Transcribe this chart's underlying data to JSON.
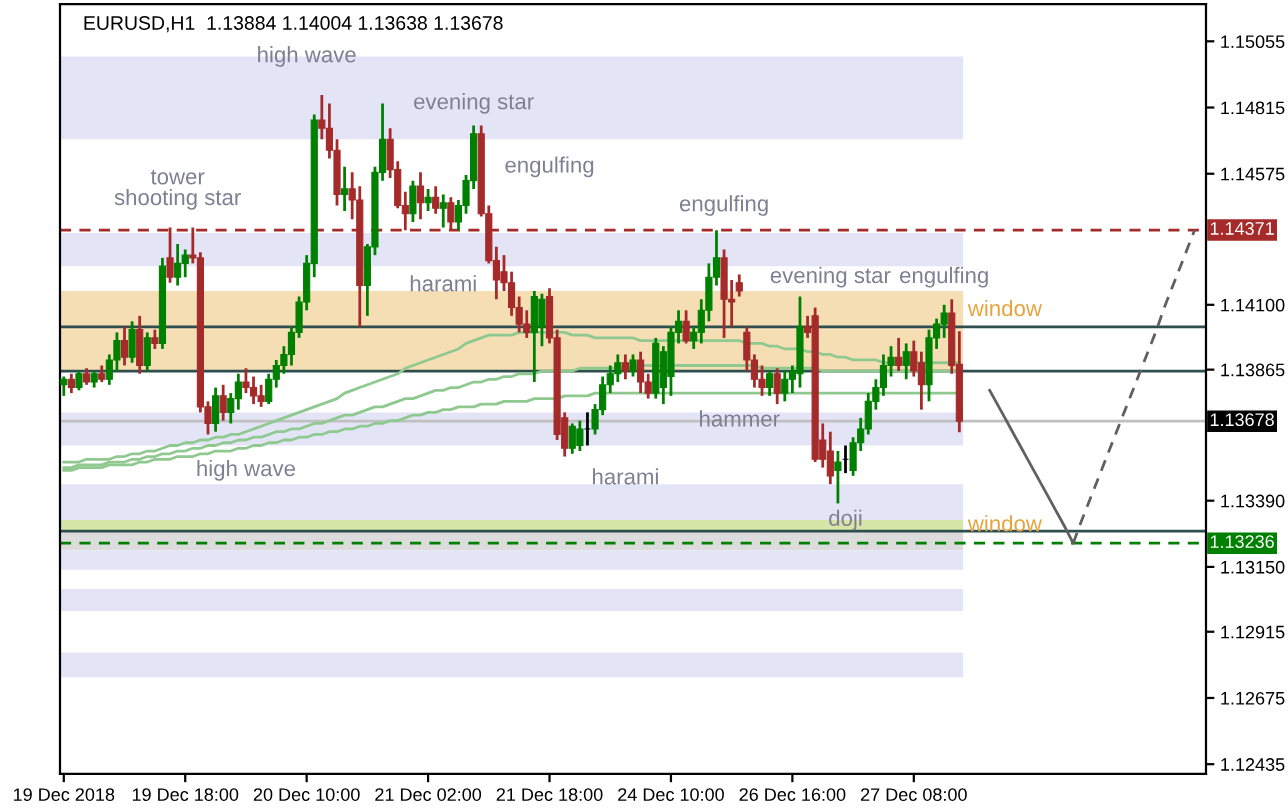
{
  "chart_data": {
    "type": "candlestick",
    "title": "EURUSD,H1  1.13884 1.14004 1.13638 1.13678",
    "categories": [
      "19 Dec 2018",
      null,
      null,
      null,
      null,
      null,
      null,
      null,
      null,
      null,
      null,
      null,
      null,
      null,
      null,
      null,
      "19 Dec 18:00",
      null,
      null,
      null,
      null,
      null,
      null,
      null,
      null,
      null,
      null,
      null,
      null,
      null,
      null,
      null,
      "20 Dec 10:00",
      null,
      null,
      null,
      null,
      null,
      null,
      null,
      null,
      null,
      null,
      null,
      null,
      null,
      null,
      null,
      "21 Dec 02:00",
      null,
      null,
      null,
      null,
      null,
      null,
      null,
      null,
      null,
      null,
      null,
      null,
      null,
      null,
      null,
      "21 Dec 18:00",
      null,
      null,
      null,
      null,
      null,
      null,
      null,
      null,
      null,
      null,
      null,
      null,
      null,
      null,
      null,
      "24 Dec 10:00",
      null,
      null,
      null,
      null,
      null,
      null,
      null,
      null,
      null,
      null,
      null,
      null,
      null,
      null,
      null,
      "26 Dec 16:00",
      null,
      null,
      null,
      null,
      null,
      null,
      null,
      null,
      null,
      null,
      null,
      null,
      null,
      null,
      null,
      "27 Dec 08:00",
      null,
      null,
      null,
      null,
      null,
      null,
      null,
      null,
      null,
      null,
      null,
      null,
      null,
      null,
      null,
      null,
      null,
      null,
      null,
      null,
      null,
      null,
      null,
      null,
      null,
      null,
      null,
      null,
      null,
      null,
      null,
      null,
      null,
      null,
      null,
      null,
      null,
      null
    ],
    "colors": [
      "#008000",
      "#a52a2a",
      "#008000",
      "#a52a2a",
      "#008000",
      "#a52a2a",
      "#008000",
      "#008000",
      "#a52a2a",
      "#008000",
      "#a52a2a",
      "#008000",
      "#a52a2a",
      "#008000",
      "#a52a2a",
      "#008000",
      "#008000",
      "#a52a2a",
      "#a52a2a",
      "#a52a2a",
      "#008000",
      "#a52a2a",
      "#008000",
      "#008000",
      "#a52a2a",
      "#a52a2a",
      "#a52a2a",
      "#008000",
      "#008000",
      "#008000",
      "#008000",
      "#008000",
      "#008000",
      "#008000",
      "#a52a2a",
      "#a52a2a",
      "#a52a2a",
      "#008000",
      "#a52a2a",
      "#a52a2a",
      "#008000",
      "#008000",
      "#008000",
      "#a52a2a",
      "#a52a2a",
      "#a52a2a",
      "#008000",
      "#a52a2a",
      "#008000",
      "#a52a2a",
      "#008000",
      "#a52a2a",
      "#008000",
      "#008000",
      "#008000",
      "#a52a2a",
      "#a52a2a",
      "#a52a2a",
      "#a52a2a",
      "#a52a2a",
      "#a52a2a",
      "#a52a2a",
      "#008000",
      "#008000",
      "#a52a2a",
      "#a52a2a",
      "#a52a2a",
      "#008000",
      "#008000",
      "#000000",
      "#008000",
      "#008000",
      "#008000",
      "#008000",
      "#a52a2a",
      "#008000",
      "#a52a2a",
      "#a52a2a",
      "#008000",
      "#008000",
      "#008000",
      "#008000",
      "#a52a2a",
      "#008000",
      "#008000",
      "#008000",
      "#008000",
      "#a52a2a",
      "#a52a2a",
      "#a52a2a",
      "#a52a2a",
      "#a52a2a",
      "#a52a2a",
      "#008000",
      "#a52a2a",
      "#008000",
      "#008000",
      "#008000",
      "#a52a2a",
      "#a52a2a",
      "#a52a2a",
      "#a52a2a",
      "#008000",
      "#000000",
      "#008000",
      "#008000",
      "#008000",
      "#008000",
      "#008000",
      "#008000",
      "#a52a2a",
      "#008000",
      "#a52a2a",
      "#a52a2a",
      "#008000",
      "#008000",
      "#008000",
      "#a52a2a",
      "#a52a2a",
      null,
      null,
      null,
      null,
      null,
      null,
      null,
      null,
      null,
      null,
      null,
      null,
      null,
      null,
      null,
      null,
      null,
      null,
      null,
      null,
      null,
      null,
      null,
      null,
      null,
      null,
      null,
      null,
      null,
      null,
      null,
      null
    ],
    "ohlc": [
      [
        1.1381,
        1.1384,
        1.1377,
        1.1383
      ],
      [
        1.1383,
        1.1385,
        1.1378,
        1.138
      ],
      [
        1.138,
        1.1386,
        1.1379,
        1.1385
      ],
      [
        1.1385,
        1.1387,
        1.1381,
        1.1382
      ],
      [
        1.1382,
        1.1386,
        1.138,
        1.1385
      ],
      [
        1.1385,
        1.1388,
        1.1382,
        1.1383
      ],
      [
        1.1383,
        1.1392,
        1.1381,
        1.139
      ],
      [
        1.139,
        1.14,
        1.1386,
        1.1397
      ],
      [
        1.1397,
        1.1402,
        1.1388,
        1.1391
      ],
      [
        1.1391,
        1.1404,
        1.1389,
        1.1401
      ],
      [
        1.1401,
        1.1406,
        1.1385,
        1.1388
      ],
      [
        1.1388,
        1.14,
        1.1386,
        1.1398
      ],
      [
        1.1398,
        1.1401,
        1.1394,
        1.1396
      ],
      [
        1.1396,
        1.1427,
        1.1394,
        1.1424
      ],
      [
        1.1427,
        1.1438,
        1.1418,
        1.142
      ],
      [
        1.142,
        1.1432,
        1.1417,
        1.1425
      ],
      [
        1.1425,
        1.143,
        1.142,
        1.1428
      ],
      [
        1.1428,
        1.1438,
        1.1425,
        1.1427
      ],
      [
        1.1427,
        1.1429,
        1.1371,
        1.1373
      ],
      [
        1.1373,
        1.1375,
        1.1363,
        1.1367
      ],
      [
        1.1367,
        1.138,
        1.1364,
        1.1377
      ],
      [
        1.1377,
        1.1381,
        1.1368,
        1.1371
      ],
      [
        1.1371,
        1.1378,
        1.1367,
        1.1376
      ],
      [
        1.1376,
        1.1385,
        1.1372,
        1.1382
      ],
      [
        1.1382,
        1.1387,
        1.1378,
        1.138
      ],
      [
        1.138,
        1.1384,
        1.1374,
        1.1377
      ],
      [
        1.1377,
        1.1381,
        1.1373,
        1.1375
      ],
      [
        1.1375,
        1.1385,
        1.1374,
        1.1383
      ],
      [
        1.1383,
        1.139,
        1.138,
        1.1388
      ],
      [
        1.1388,
        1.1395,
        1.1385,
        1.1392
      ],
      [
        1.1392,
        1.1402,
        1.1388,
        1.14
      ],
      [
        1.14,
        1.1413,
        1.1398,
        1.1411
      ],
      [
        1.1411,
        1.1428,
        1.1408,
        1.1425
      ],
      [
        1.1425,
        1.1479,
        1.142,
        1.1477
      ],
      [
        1.1477,
        1.1486,
        1.147,
        1.1474
      ],
      [
        1.1474,
        1.1483,
        1.1463,
        1.1466
      ],
      [
        1.1466,
        1.147,
        1.1446,
        1.145
      ],
      [
        1.145,
        1.146,
        1.1444,
        1.1452
      ],
      [
        1.1452,
        1.1458,
        1.1441,
        1.1448
      ],
      [
        1.1448,
        1.1453,
        1.1402,
        1.1417
      ],
      [
        1.1417,
        1.1432,
        1.1406,
        1.1431
      ],
      [
        1.1431,
        1.146,
        1.1428,
        1.1458
      ],
      [
        1.1458,
        1.1483,
        1.1455,
        1.147
      ],
      [
        1.147,
        1.1474,
        1.1456,
        1.1459
      ],
      [
        1.1459,
        1.1462,
        1.1445,
        1.1446
      ],
      [
        1.1446,
        1.1451,
        1.1437,
        1.1443
      ],
      [
        1.1443,
        1.1455,
        1.144,
        1.1453
      ],
      [
        1.1453,
        1.1458,
        1.1441,
        1.1447
      ],
      [
        1.1447,
        1.1452,
        1.1444,
        1.1449
      ],
      [
        1.1449,
        1.1453,
        1.1443,
        1.1445
      ],
      [
        1.1445,
        1.145,
        1.1438,
        1.1447
      ],
      [
        1.1447,
        1.1449,
        1.1437,
        1.144
      ],
      [
        1.144,
        1.1448,
        1.1437,
        1.1446
      ],
      [
        1.1446,
        1.1457,
        1.1443,
        1.1455
      ],
      [
        1.1455,
        1.1475,
        1.1452,
        1.1472
      ],
      [
        1.1472,
        1.1475,
        1.1442,
        1.1443
      ],
      [
        1.1443,
        1.1446,
        1.1425,
        1.1426
      ],
      [
        1.1426,
        1.1431,
        1.1412,
        1.1419
      ],
      [
        1.1422,
        1.1428,
        1.1415,
        1.1418
      ],
      [
        1.1418,
        1.1422,
        1.1406,
        1.1409
      ],
      [
        1.1409,
        1.1413,
        1.14,
        1.1403
      ],
      [
        1.1403,
        1.1408,
        1.1398,
        1.14
      ],
      [
        1.14,
        1.1415,
        1.1382,
        1.1413
      ],
      [
        1.1402,
        1.1414,
        1.1395,
        1.1412
      ],
      [
        1.1413,
        1.1416,
        1.1396,
        1.1398
      ],
      [
        1.1398,
        1.1401,
        1.1361,
        1.1363
      ],
      [
        1.1369,
        1.1371,
        1.1355,
        1.1358
      ],
      [
        1.1358,
        1.1367,
        1.1356,
        1.1366
      ],
      [
        1.1359,
        1.1368,
        1.1357,
        1.1365
      ],
      [
        1.1365,
        1.1371,
        1.1359,
        1.1365
      ],
      [
        1.1365,
        1.1374,
        1.1363,
        1.1372
      ],
      [
        1.1372,
        1.1384,
        1.137,
        1.1381
      ],
      [
        1.1381,
        1.1388,
        1.1378,
        1.1385
      ],
      [
        1.1385,
        1.1392,
        1.1382,
        1.1389
      ],
      [
        1.1389,
        1.1392,
        1.1383,
        1.1386
      ],
      [
        1.1386,
        1.1392,
        1.1384,
        1.139
      ],
      [
        1.139,
        1.1393,
        1.1378,
        1.1382
      ],
      [
        1.1382,
        1.1385,
        1.1376,
        1.1378
      ],
      [
        1.1378,
        1.1398,
        1.1376,
        1.1396
      ],
      [
        1.138,
        1.1395,
        1.1374,
        1.1393
      ],
      [
        1.1384,
        1.1402,
        1.1377,
        1.14
      ],
      [
        1.14,
        1.1408,
        1.1396,
        1.1404
      ],
      [
        1.1404,
        1.1408,
        1.1396,
        1.1397
      ],
      [
        1.1397,
        1.1402,
        1.1394,
        1.14
      ],
      [
        1.14,
        1.1412,
        1.1396,
        1.1408
      ],
      [
        1.1408,
        1.1425,
        1.1404,
        1.142
      ],
      [
        1.142,
        1.1437,
        1.1417,
        1.1427
      ],
      [
        1.1427,
        1.143,
        1.1398,
        1.1412
      ],
      [
        1.1412,
        1.1419,
        1.1402,
        1.1411
      ],
      [
        1.1418,
        1.1421,
        1.1413,
        1.1415
      ],
      [
        1.14,
        1.1402,
        1.1386,
        1.139
      ],
      [
        1.139,
        1.1392,
        1.138,
        1.1383
      ],
      [
        1.1383,
        1.1388,
        1.1377,
        1.138
      ],
      [
        1.138,
        1.1386,
        1.1377,
        1.1385
      ],
      [
        1.1385,
        1.1387,
        1.1374,
        1.1378
      ],
      [
        1.1378,
        1.1386,
        1.1375,
        1.1383
      ],
      [
        1.1383,
        1.1388,
        1.1378,
        1.1386
      ],
      [
        1.1385,
        1.1413,
        1.138,
        1.1402
      ],
      [
        1.1402,
        1.1406,
        1.1398,
        1.14
      ],
      [
        1.1406,
        1.1409,
        1.1353,
        1.1354
      ],
      [
        1.1361,
        1.1367,
        1.1351,
        1.1354
      ],
      [
        1.1357,
        1.1364,
        1.1345,
        1.1348
      ],
      [
        1.135,
        1.1357,
        1.1338,
        1.1353
      ],
      [
        1.1354,
        1.1359,
        1.1349,
        1.1354
      ],
      [
        1.135,
        1.1362,
        1.1348,
        1.136
      ],
      [
        1.136,
        1.1369,
        1.1357,
        1.1365
      ],
      [
        1.1365,
        1.1378,
        1.1363,
        1.1375
      ],
      [
        1.1375,
        1.1383,
        1.1372,
        1.138
      ],
      [
        1.138,
        1.1392,
        1.1377,
        1.1388
      ],
      [
        1.1388,
        1.1395,
        1.1384,
        1.1391
      ],
      [
        1.1391,
        1.1398,
        1.1386,
        1.1388
      ],
      [
        1.1388,
        1.1396,
        1.1383,
        1.1393
      ],
      [
        1.1393,
        1.1397,
        1.1384,
        1.1386
      ],
      [
        1.1389,
        1.1393,
        1.1372,
        1.1381
      ],
      [
        1.1381,
        1.1401,
        1.1375,
        1.1398
      ],
      [
        1.1398,
        1.1405,
        1.1394,
        1.1403
      ],
      [
        1.1403,
        1.141,
        1.1398,
        1.1407
      ],
      [
        1.1407,
        1.1412,
        1.1385,
        1.1388
      ],
      [
        1.13884,
        1.14004,
        1.13638,
        1.13678
      ],
      null,
      null,
      null,
      null,
      null,
      null,
      null,
      null,
      null,
      null,
      null,
      null,
      null,
      null,
      null,
      null,
      null,
      null,
      null,
      null,
      null,
      null,
      null,
      null,
      null,
      null,
      null,
      null,
      null,
      null,
      null,
      null
    ],
    "series": [
      {
        "type": "line",
        "color": "#8fc98f",
        "values": [
          1.1353,
          1.1353,
          1.1353,
          1.1354,
          1.1354,
          1.1354,
          1.1354,
          1.1355,
          1.1355,
          1.1356,
          1.1356,
          1.1357,
          1.1357,
          1.1358,
          1.1359,
          1.1359,
          1.136,
          1.136,
          1.1361,
          1.1361,
          1.1362,
          1.1362,
          1.1363,
          1.1363,
          1.1364,
          1.1365,
          1.1366,
          1.1367,
          1.1368,
          1.1369,
          1.137,
          1.1371,
          1.1372,
          1.1373,
          1.1374,
          1.1375,
          1.1376,
          1.1378,
          1.1379,
          1.138,
          1.1381,
          1.1382,
          1.1383,
          1.1384,
          1.1385,
          1.1387,
          1.1388,
          1.1389,
          1.139,
          1.1391,
          1.1392,
          1.1393,
          1.1394,
          1.1396,
          1.1397,
          1.1398,
          1.1399,
          1.1399,
          1.1399,
          1.1399,
          1.14,
          1.14,
          1.14,
          1.14,
          1.14,
          1.14,
          1.14,
          1.1399,
          1.1399,
          1.1399,
          1.1398,
          1.1398,
          1.1398,
          1.1398,
          1.1398,
          1.1398,
          1.1397,
          1.1397,
          1.1397,
          1.1397,
          1.1397,
          1.1397,
          1.1397,
          1.1397,
          1.1397,
          1.1397,
          1.1397,
          1.1397,
          1.1397,
          1.1397,
          1.1396,
          1.1396,
          1.1396,
          1.1395,
          1.1395,
          1.1394,
          1.1394,
          1.1394,
          1.1393,
          1.1393,
          1.1392,
          1.1392,
          1.1391,
          1.1391,
          1.139,
          1.139,
          1.139,
          1.139,
          1.1389,
          1.1389,
          1.1389,
          1.1389,
          1.1389,
          1.1389,
          1.1389,
          1.1389,
          1.1389,
          1.1389,
          1.1389,
          null,
          null,
          null,
          null,
          null,
          null,
          null,
          null,
          null,
          null,
          null,
          null,
          null,
          null,
          null,
          null,
          null,
          null,
          null,
          null,
          null,
          null,
          null,
          null,
          null,
          null,
          null,
          null,
          null,
          null,
          null,
          null
        ]
      },
      {
        "type": "line",
        "color": "#8fc98f",
        "values": [
          1.1351,
          1.1351,
          1.1352,
          1.1352,
          1.1352,
          1.1352,
          1.1353,
          1.1353,
          1.1353,
          1.1354,
          1.1354,
          1.1355,
          1.1355,
          1.1356,
          1.1356,
          1.1357,
          1.1357,
          1.1358,
          1.1358,
          1.1359,
          1.1359,
          1.136,
          1.136,
          1.1361,
          1.1361,
          1.1362,
          1.1362,
          1.1363,
          1.1364,
          1.1364,
          1.1365,
          1.1365,
          1.1366,
          1.1367,
          1.1367,
          1.1368,
          1.1369,
          1.137,
          1.137,
          1.1371,
          1.1372,
          1.1373,
          1.1373,
          1.1374,
          1.1375,
          1.1376,
          1.1376,
          1.1377,
          1.1378,
          1.1379,
          1.1379,
          1.138,
          1.138,
          1.1381,
          1.1382,
          1.1382,
          1.1383,
          1.1383,
          1.1384,
          1.1384,
          1.1385,
          1.1385,
          1.1385,
          1.1386,
          1.1386,
          1.1386,
          1.1386,
          1.1386,
          1.1387,
          1.1387,
          1.1387,
          1.1387,
          1.1387,
          1.1387,
          1.1387,
          1.1387,
          1.1388,
          1.1388,
          1.1388,
          1.1388,
          1.1388,
          1.1388,
          1.1388,
          1.1388,
          1.1388,
          1.1388,
          1.1388,
          1.1388,
          1.1388,
          1.1388,
          1.1388,
          1.1388,
          1.1387,
          1.1387,
          1.1387,
          1.1387,
          1.1387,
          1.1387,
          1.1387,
          1.1387,
          1.1386,
          1.1386,
          1.1386,
          1.1386,
          1.1386,
          1.1386,
          1.1386,
          1.1386,
          1.1386,
          1.1386,
          1.1386,
          1.1386,
          1.1386,
          1.1386,
          1.1386,
          1.1386,
          1.1386,
          1.1386,
          1.1386,
          null,
          null,
          null,
          null,
          null,
          null,
          null,
          null,
          null,
          null,
          null,
          null,
          null,
          null,
          null,
          null,
          null,
          null,
          null,
          null,
          null,
          null,
          null,
          null,
          null,
          null,
          null,
          null,
          null,
          null,
          null,
          null
        ]
      },
      {
        "type": "line",
        "color": "#8fc98f",
        "values": [
          1.135,
          1.135,
          1.1351,
          1.1351,
          1.1351,
          1.1351,
          1.1352,
          1.1352,
          1.1352,
          1.1352,
          1.1353,
          1.1353,
          1.1354,
          1.1354,
          1.1354,
          1.1355,
          1.1355,
          1.1355,
          1.1356,
          1.1356,
          1.1357,
          1.1357,
          1.1357,
          1.1358,
          1.1358,
          1.1359,
          1.1359,
          1.136,
          1.136,
          1.1361,
          1.1361,
          1.1362,
          1.1362,
          1.1363,
          1.1363,
          1.1364,
          1.1364,
          1.1365,
          1.1365,
          1.1366,
          1.1366,
          1.1367,
          1.1367,
          1.1368,
          1.1368,
          1.1369,
          1.137,
          1.137,
          1.1371,
          1.1371,
          1.1372,
          1.1372,
          1.1373,
          1.1373,
          1.1373,
          1.1374,
          1.1374,
          1.1374,
          1.1375,
          1.1375,
          1.1375,
          1.1375,
          1.1376,
          1.1376,
          1.1376,
          1.1376,
          1.1377,
          1.1377,
          1.1377,
          1.1377,
          1.1378,
          1.1378,
          1.1378,
          1.1378,
          1.1378,
          1.1378,
          1.1378,
          1.1378,
          1.1378,
          1.1378,
          1.1378,
          1.1378,
          1.1378,
          1.1378,
          1.1378,
          1.1378,
          1.1378,
          1.1378,
          1.1378,
          1.1378,
          1.1378,
          1.1378,
          1.1378,
          1.1378,
          1.1378,
          1.1378,
          1.1378,
          1.1378,
          1.1378,
          1.1378,
          1.1378,
          1.1378,
          1.1378,
          1.1378,
          1.1378,
          1.1378,
          1.1378,
          1.1378,
          1.1378,
          1.1378,
          1.1378,
          1.1378,
          1.1378,
          1.1378,
          1.1378,
          1.1378,
          1.1378,
          1.1378,
          1.1378,
          null,
          null,
          null,
          null,
          null,
          null,
          null,
          null,
          null,
          null,
          null,
          null,
          null,
          null,
          null,
          null,
          null,
          null,
          null,
          null,
          null,
          null,
          null,
          null,
          null,
          null,
          null,
          null,
          null,
          null,
          null,
          null
        ]
      },
      {
        "type": "line",
        "color": "#606060",
        "line_style": "solid",
        "values": [
          null,
          null,
          null,
          null,
          null,
          null,
          null,
          null,
          null,
          null,
          null,
          null,
          null,
          null,
          null,
          null,
          null,
          null,
          null,
          null,
          null,
          null,
          null,
          null,
          null,
          null,
          null,
          null,
          null,
          null,
          null,
          null,
          null,
          null,
          null,
          null,
          null,
          null,
          null,
          null,
          null,
          null,
          null,
          null,
          null,
          null,
          null,
          null,
          null,
          null,
          null,
          null,
          null,
          null,
          null,
          null,
          null,
          null,
          null,
          null,
          null,
          null,
          null,
          null,
          null,
          null,
          null,
          null,
          null,
          null,
          null,
          null,
          null,
          null,
          null,
          null,
          null,
          null,
          null,
          null,
          null,
          null,
          null,
          null,
          null,
          null,
          null,
          null,
          null,
          null,
          null,
          null,
          null,
          null,
          null,
          null,
          null,
          null,
          null,
          null,
          null,
          null,
          null,
          null,
          null,
          null,
          null,
          null,
          null,
          null,
          null,
          null,
          null,
          null,
          null,
          null,
          null,
          null,
          null,
          null,
          null,
          null,
          1.1379,
          1.1374,
          1.1369,
          1.1364,
          1.1359,
          1.1354,
          1.1349,
          1.1344,
          1.1339,
          1.1334,
          1.1329,
          1.13236,
          null,
          null,
          null,
          null,
          null,
          null,
          null,
          null,
          null,
          null,
          null,
          null,
          null,
          null,
          null,
          null,
          null
        ]
      },
      {
        "type": "line",
        "color": "#606060",
        "line_style": "dashed",
        "values": [
          null,
          null,
          null,
          null,
          null,
          null,
          null,
          null,
          null,
          null,
          null,
          null,
          null,
          null,
          null,
          null,
          null,
          null,
          null,
          null,
          null,
          null,
          null,
          null,
          null,
          null,
          null,
          null,
          null,
          null,
          null,
          null,
          null,
          null,
          null,
          null,
          null,
          null,
          null,
          null,
          null,
          null,
          null,
          null,
          null,
          null,
          null,
          null,
          null,
          null,
          null,
          null,
          null,
          null,
          null,
          null,
          null,
          null,
          null,
          null,
          null,
          null,
          null,
          null,
          null,
          null,
          null,
          null,
          null,
          null,
          null,
          null,
          null,
          null,
          null,
          null,
          null,
          null,
          null,
          null,
          null,
          null,
          null,
          null,
          null,
          null,
          null,
          null,
          null,
          null,
          null,
          null,
          null,
          null,
          null,
          null,
          null,
          null,
          null,
          null,
          null,
          null,
          null,
          null,
          null,
          null,
          null,
          null,
          null,
          null,
          null,
          null,
          null,
          null,
          null,
          null,
          null,
          null,
          null,
          null,
          null,
          null,
          null,
          null,
          null,
          null,
          null,
          null,
          null,
          null,
          null,
          null,
          null,
          1.13236,
          1.1331,
          1.1338,
          1.1345,
          1.1352,
          1.1359,
          1.1366,
          1.1373,
          1.138,
          1.1387,
          1.1394,
          1.1401,
          1.1409,
          1.1416,
          1.1423,
          1.143,
          1.14371,
          null
        ]
      }
    ],
    "ylim": [
      1.124,
      1.1519
    ],
    "yticks": [
      1.15055,
      1.14815,
      1.14575,
      {
        "value": 1.141,
        "label": "1.14100"
      },
      1.13865,
      {
        "value": 1.1339,
        "label": "1.13390"
      },
      {
        "value": 1.1315,
        "label": "1.13150"
      },
      1.12915,
      1.12675,
      1.12435
    ],
    "bands": [
      {
        "axis": "y",
        "from": 1.147,
        "to": 1.15,
        "color": "#e4e4f7"
      },
      {
        "axis": "y",
        "from": 1.1424,
        "to": 1.1436,
        "color": "#e4e4f7"
      },
      {
        "axis": "y",
        "from": 1.1386,
        "to": 1.1401,
        "color": "#f5deb3"
      },
      {
        "axis": "y",
        "from": 1.1401,
        "to": 1.1415,
        "color": "#f5deb3"
      },
      {
        "axis": "y",
        "from": 1.1359,
        "to": 1.1371,
        "color": "#e4e4f7"
      },
      {
        "axis": "y",
        "from": 1.1332,
        "to": 1.1345,
        "color": "#e4e4f7"
      },
      {
        "axis": "y",
        "from": 1.1328,
        "to": 1.1332,
        "color": "#d6e6a6"
      },
      {
        "axis": "y",
        "from": 1.1321,
        "to": 1.1328,
        "color": "#dcdcdc"
      },
      {
        "axis": "y",
        "from": 1.1314,
        "to": 1.1321,
        "color": "#e4e4f7"
      },
      {
        "axis": "y",
        "from": 1.1299,
        "to": 1.1307,
        "color": "#e4e4f7"
      },
      {
        "axis": "y",
        "from": 1.1275,
        "to": 1.1284,
        "color": "#e4e4f7"
      }
    ],
    "ref_lines": [
      {
        "axis": "y",
        "value": 1.14371,
        "label": "1.14371",
        "color": "#a52a2a",
        "line_style": "dashed"
      },
      {
        "axis": "y",
        "value": 1.13678,
        "label": "1.13678",
        "color": "#c0c0c0",
        "line_style": "solid"
      },
      {
        "axis": "y",
        "value": 1.13236,
        "label": "1.13236",
        "color": "#008000",
        "line_style": "dashed"
      },
      {
        "axis": "y",
        "value": 1.1386,
        "color": "#2f4f4f",
        "line_style": "solid"
      },
      {
        "axis": "y",
        "value": 1.1402,
        "color": "#2f4f4f",
        "line_style": "solid"
      },
      {
        "axis": "y",
        "value": 1.1328,
        "color": "#2f4f4f",
        "line_style": "solid"
      }
    ],
    "annotations": [
      "high wave",
      "evening star",
      "engulfing",
      "tower\nshooting star",
      "harami",
      "engulfing",
      "evening star",
      "engulfing",
      "window",
      "hammer",
      "high wave",
      "harami",
      "doji",
      "window"
    ],
    "grid": false,
    "legend": false
  }
}
